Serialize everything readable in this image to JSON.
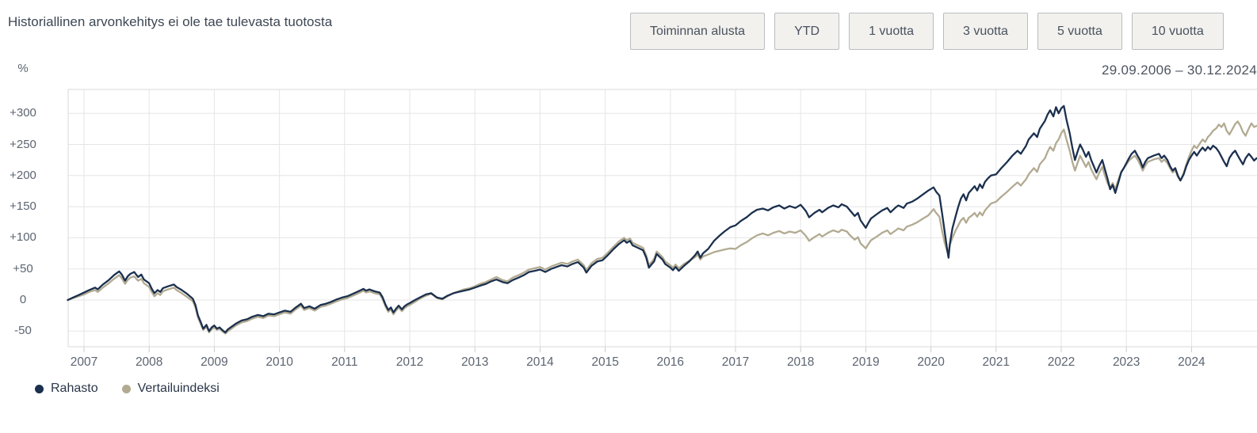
{
  "header": {
    "title": "Historiallinen arvonkehitys ei ole tae tulevasta tuotosta",
    "range_buttons": [
      "Toiminnan alusta",
      "YTD",
      "1 vuotta",
      "3 vuotta",
      "5 vuotta",
      "10 vuotta"
    ],
    "date_range": "29.09.2006 – 30.12.2024"
  },
  "legend": {
    "items": [
      "Rahasto",
      "Vertailuindeksi"
    ]
  },
  "chart_data": {
    "type": "line",
    "title": "",
    "xlabel": "",
    "ylabel": "%",
    "grid": true,
    "legend_position": "bottom-left",
    "xlim": [
      2006.75,
      2025.0
    ],
    "ylim": [
      -75,
      338
    ],
    "x_ticks": [
      2007,
      2008,
      2009,
      2010,
      2011,
      2012,
      2013,
      2014,
      2015,
      2016,
      2017,
      2018,
      2019,
      2020,
      2021,
      2022,
      2023,
      2024
    ],
    "y_ticks": [
      {
        "v": 300,
        "label": "+300"
      },
      {
        "v": 250,
        "label": "+250"
      },
      {
        "v": 200,
        "label": "+200"
      },
      {
        "v": 150,
        "label": "+150"
      },
      {
        "v": 100,
        "label": "+100"
      },
      {
        "v": 50,
        "label": "+50"
      },
      {
        "v": 0,
        "label": "0"
      },
      {
        "v": -50,
        "label": "-50"
      }
    ],
    "x": [
      2006.75,
      2006.83,
      2006.92,
      2007.0,
      2007.08,
      2007.17,
      2007.21,
      2007.29,
      2007.38,
      2007.46,
      2007.54,
      2007.58,
      2007.63,
      2007.67,
      2007.71,
      2007.77,
      2007.83,
      2007.88,
      2007.92,
      2008.0,
      2008.04,
      2008.08,
      2008.13,
      2008.17,
      2008.21,
      2008.29,
      2008.38,
      2008.42,
      2008.5,
      2008.58,
      2008.67,
      2008.71,
      2008.75,
      2008.79,
      2008.83,
      2008.88,
      2008.92,
      2008.96,
      2009.0,
      2009.04,
      2009.08,
      2009.13,
      2009.17,
      2009.21,
      2009.25,
      2009.33,
      2009.42,
      2009.5,
      2009.58,
      2009.67,
      2009.75,
      2009.83,
      2009.92,
      2010.0,
      2010.08,
      2010.17,
      2010.25,
      2010.33,
      2010.38,
      2010.46,
      2010.54,
      2010.63,
      2010.71,
      2010.79,
      2010.88,
      2010.96,
      2011.04,
      2011.13,
      2011.21,
      2011.29,
      2011.33,
      2011.38,
      2011.46,
      2011.54,
      2011.58,
      2011.63,
      2011.67,
      2011.71,
      2011.75,
      2011.79,
      2011.83,
      2011.88,
      2011.92,
      2011.96,
      2012.0,
      2012.08,
      2012.17,
      2012.25,
      2012.33,
      2012.42,
      2012.5,
      2012.58,
      2012.67,
      2012.75,
      2012.83,
      2012.92,
      2013.0,
      2013.08,
      2013.17,
      2013.25,
      2013.33,
      2013.42,
      2013.5,
      2013.58,
      2013.67,
      2013.75,
      2013.83,
      2013.92,
      2014.0,
      2014.08,
      2014.17,
      2014.25,
      2014.33,
      2014.42,
      2014.5,
      2014.58,
      2014.67,
      2014.71,
      2014.79,
      2014.88,
      2014.96,
      2015.04,
      2015.13,
      2015.21,
      2015.29,
      2015.33,
      2015.38,
      2015.42,
      2015.5,
      2015.58,
      2015.63,
      2015.67,
      2015.75,
      2015.79,
      2015.83,
      2015.88,
      2015.92,
      2016.0,
      2016.04,
      2016.08,
      2016.13,
      2016.21,
      2016.29,
      2016.38,
      2016.42,
      2016.46,
      2016.5,
      2016.58,
      2016.67,
      2016.75,
      2016.83,
      2016.92,
      2017.0,
      2017.08,
      2017.17,
      2017.25,
      2017.33,
      2017.42,
      2017.5,
      2017.58,
      2017.67,
      2017.75,
      2017.83,
      2017.92,
      2018.0,
      2018.08,
      2018.13,
      2018.21,
      2018.29,
      2018.33,
      2018.42,
      2018.5,
      2018.58,
      2018.63,
      2018.71,
      2018.75,
      2018.83,
      2018.88,
      2018.92,
      2019.0,
      2019.04,
      2019.08,
      2019.17,
      2019.25,
      2019.33,
      2019.38,
      2019.46,
      2019.5,
      2019.58,
      2019.63,
      2019.71,
      2019.79,
      2019.88,
      2019.96,
      2020.04,
      2020.08,
      2020.13,
      2020.17,
      2020.21,
      2020.25,
      2020.27,
      2020.29,
      2020.33,
      2020.38,
      2020.42,
      2020.46,
      2020.5,
      2020.54,
      2020.58,
      2020.63,
      2020.67,
      2020.71,
      2020.75,
      2020.79,
      2020.83,
      2020.88,
      2020.92,
      2021.0,
      2021.08,
      2021.17,
      2021.25,
      2021.33,
      2021.38,
      2021.46,
      2021.5,
      2021.58,
      2021.63,
      2021.67,
      2021.75,
      2021.79,
      2021.83,
      2021.88,
      2021.92,
      2021.96,
      2022.0,
      2022.04,
      2022.08,
      2022.13,
      2022.17,
      2022.21,
      2022.25,
      2022.29,
      2022.33,
      2022.38,
      2022.42,
      2022.46,
      2022.5,
      2022.54,
      2022.58,
      2022.63,
      2022.67,
      2022.71,
      2022.75,
      2022.79,
      2022.83,
      2022.88,
      2022.92,
      2022.96,
      2023.0,
      2023.04,
      2023.08,
      2023.13,
      2023.17,
      2023.21,
      2023.25,
      2023.29,
      2023.33,
      2023.42,
      2023.5,
      2023.54,
      2023.58,
      2023.63,
      2023.67,
      2023.71,
      2023.75,
      2023.79,
      2023.83,
      2023.88,
      2023.92,
      2023.96,
      2024.0,
      2024.04,
      2024.08,
      2024.13,
      2024.17,
      2024.21,
      2024.25,
      2024.29,
      2024.33,
      2024.38,
      2024.42,
      2024.46,
      2024.5,
      2024.54,
      2024.58,
      2024.63,
      2024.67,
      2024.71,
      2024.75,
      2024.79,
      2024.83,
      2024.88,
      2024.92,
      2024.96,
      2025.0
    ],
    "series": [
      {
        "name": "Rahasto",
        "color": "#1b304e",
        "values": [
          0,
          4,
          8,
          12,
          16,
          20,
          17,
          25,
          32,
          40,
          46,
          41,
          31,
          38,
          42,
          45,
          37,
          41,
          33,
          27,
          18,
          11,
          16,
          13,
          19,
          22,
          25,
          21,
          16,
          10,
          2,
          -8,
          -25,
          -35,
          -46,
          -40,
          -50,
          -44,
          -41,
          -46,
          -44,
          -49,
          -52,
          -47,
          -44,
          -38,
          -33,
          -31,
          -27,
          -24,
          -26,
          -22,
          -23,
          -20,
          -17,
          -19,
          -12,
          -6,
          -13,
          -10,
          -14,
          -8,
          -6,
          -3,
          1,
          4,
          6,
          10,
          14,
          18,
          15,
          17,
          14,
          12,
          5,
          -8,
          -16,
          -12,
          -20,
          -14,
          -9,
          -15,
          -10,
          -7,
          -5,
          0,
          5,
          9,
          11,
          4,
          2,
          7,
          11,
          13,
          15,
          17,
          20,
          23,
          26,
          30,
          33,
          29,
          27,
          32,
          36,
          40,
          45,
          47,
          49,
          45,
          50,
          53,
          56,
          54,
          58,
          61,
          52,
          44,
          55,
          62,
          64,
          72,
          82,
          90,
          96,
          92,
          95,
          88,
          84,
          80,
          68,
          52,
          62,
          74,
          70,
          65,
          58,
          52,
          48,
          53,
          47,
          55,
          62,
          72,
          78,
          68,
          75,
          82,
          95,
          103,
          110,
          117,
          120,
          127,
          133,
          140,
          145,
          147,
          144,
          149,
          152,
          147,
          151,
          148,
          153,
          143,
          133,
          140,
          145,
          141,
          148,
          152,
          149,
          154,
          150,
          145,
          135,
          140,
          128,
          116,
          124,
          131,
          138,
          144,
          148,
          141,
          149,
          152,
          148,
          155,
          158,
          163,
          170,
          176,
          181,
          174,
          168,
          140,
          110,
          80,
          68,
          90,
          115,
          135,
          150,
          163,
          170,
          160,
          172,
          178,
          183,
          176,
          186,
          180,
          190,
          196,
          200,
          202,
          212,
          222,
          232,
          240,
          235,
          248,
          258,
          268,
          262,
          275,
          288,
          298,
          305,
          295,
          310,
          300,
          308,
          312,
          290,
          268,
          245,
          225,
          238,
          250,
          242,
          230,
          238,
          225,
          215,
          205,
          215,
          225,
          210,
          195,
          178,
          185,
          172,
          190,
          205,
          212,
          220,
          228,
          235,
          240,
          232,
          225,
          213,
          222,
          228,
          232,
          235,
          228,
          232,
          225,
          215,
          208,
          212,
          200,
          192,
          202,
          215,
          225,
          232,
          238,
          232,
          240,
          245,
          240,
          246,
          242,
          248,
          244,
          238,
          230,
          222,
          215,
          228,
          236,
          240,
          232,
          225,
          218,
          228,
          235,
          230,
          224,
          228
        ]
      },
      {
        "name": "Vertailuindeksi",
        "color": "#b2aa91",
        "values": [
          0,
          3,
          6,
          9,
          13,
          16,
          13,
          20,
          27,
          34,
          40,
          35,
          26,
          32,
          36,
          38,
          31,
          34,
          27,
          21,
          13,
          6,
          11,
          8,
          14,
          17,
          20,
          16,
          11,
          5,
          -2,
          -12,
          -28,
          -38,
          -48,
          -43,
          -52,
          -47,
          -44,
          -48,
          -46,
          -51,
          -54,
          -50,
          -47,
          -41,
          -36,
          -34,
          -30,
          -27,
          -29,
          -25,
          -26,
          -23,
          -20,
          -22,
          -15,
          -9,
          -16,
          -13,
          -17,
          -11,
          -9,
          -6,
          -2,
          1,
          3,
          7,
          11,
          15,
          12,
          14,
          11,
          9,
          2,
          -11,
          -19,
          -15,
          -23,
          -17,
          -12,
          -18,
          -13,
          -10,
          -8,
          -3,
          3,
          7,
          10,
          3,
          1,
          6,
          11,
          14,
          17,
          19,
          22,
          26,
          29,
          33,
          37,
          32,
          30,
          36,
          40,
          44,
          49,
          51,
          53,
          49,
          54,
          57,
          60,
          58,
          62,
          65,
          56,
          48,
          59,
          66,
          68,
          76,
          86,
          94,
          100,
          96,
          99,
          92,
          88,
          84,
          72,
          56,
          66,
          78,
          74,
          69,
          62,
          56,
          52,
          57,
          51,
          58,
          63,
          69,
          73,
          65,
          70,
          73,
          77,
          79,
          81,
          83,
          82,
          88,
          93,
          99,
          104,
          107,
          104,
          108,
          111,
          107,
          110,
          108,
          112,
          103,
          95,
          101,
          106,
          102,
          108,
          112,
          109,
          113,
          110,
          105,
          97,
          101,
          91,
          83,
          90,
          96,
          102,
          108,
          112,
          106,
          112,
          115,
          112,
          118,
          121,
          125,
          131,
          136,
          146,
          140,
          134,
          112,
          92,
          78,
          74,
          88,
          100,
          112,
          120,
          128,
          132,
          124,
          132,
          136,
          140,
          134,
          141,
          136,
          144,
          150,
          155,
          158,
          166,
          174,
          182,
          189,
          184,
          194,
          202,
          212,
          206,
          218,
          228,
          238,
          246,
          240,
          252,
          258,
          268,
          274,
          258,
          240,
          222,
          208,
          220,
          232,
          224,
          214,
          222,
          210,
          202,
          194,
          204,
          214,
          200,
          188,
          180,
          188,
          178,
          194,
          206,
          212,
          218,
          224,
          228,
          232,
          226,
          218,
          208,
          216,
          222,
          226,
          228,
          222,
          226,
          220,
          212,
          205,
          209,
          198,
          192,
          204,
          218,
          230,
          240,
          248,
          244,
          252,
          258,
          254,
          262,
          266,
          272,
          276,
          282,
          278,
          284,
          272,
          266,
          275,
          283,
          287,
          280,
          270,
          264,
          276,
          284,
          278,
          280
        ]
      }
    ]
  }
}
